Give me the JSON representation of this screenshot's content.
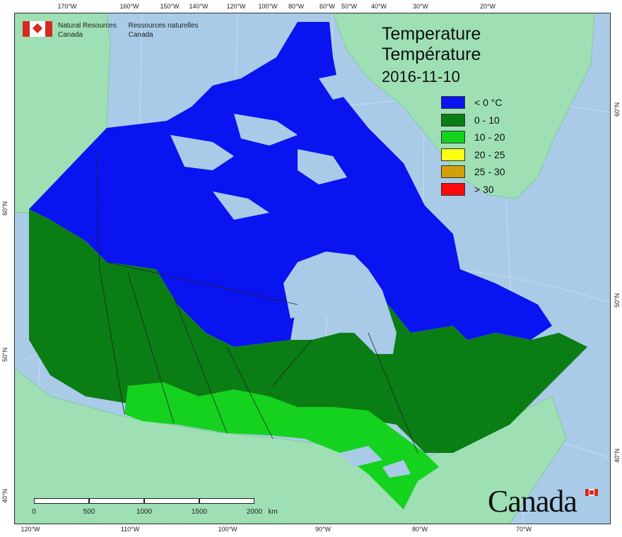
{
  "agency": {
    "en_line1": "Natural Resources",
    "en_line2": "Canada",
    "fr_line1": "Ressources naturelles",
    "fr_line2": "Canada"
  },
  "title": {
    "en": "Temperature",
    "fr": "Température",
    "date": "2016-11-10"
  },
  "legend": [
    {
      "label": "< 0 °C",
      "color": "#0a14f0"
    },
    {
      "label": "0 - 10",
      "color": "#0a7d14"
    },
    {
      "label": "10 - 20",
      "color": "#14d21e"
    },
    {
      "label": "20 - 25",
      "color": "#ffff14"
    },
    {
      "label": "25 - 30",
      "color": "#d2a00a"
    },
    {
      "label": "> 30",
      "color": "#ff0a0a"
    }
  ],
  "top_ticks": [
    "170°W",
    "160°W",
    "150°W",
    "140°W",
    "120°W",
    "100°W",
    "80°W",
    "60°W",
    "50°W",
    "40°W",
    "30°W",
    "20°W"
  ],
  "bottom_ticks": [
    "120°W",
    "110°W",
    "100°W",
    "90°W",
    "80°W",
    "70°W"
  ],
  "left_ticks": [
    "60°N",
    "50°N",
    "40°N"
  ],
  "right_ticks": [
    "60°N",
    "50°N",
    "40°N"
  ],
  "scale": {
    "labels": [
      "0",
      "500",
      "1000",
      "1500",
      "2000"
    ],
    "unit": "km"
  },
  "wordmark": "Canada",
  "colors": {
    "ocean": "#a9cbe8",
    "foreign_land": "#9ee0b4",
    "lakes": "#a9cbe8"
  }
}
